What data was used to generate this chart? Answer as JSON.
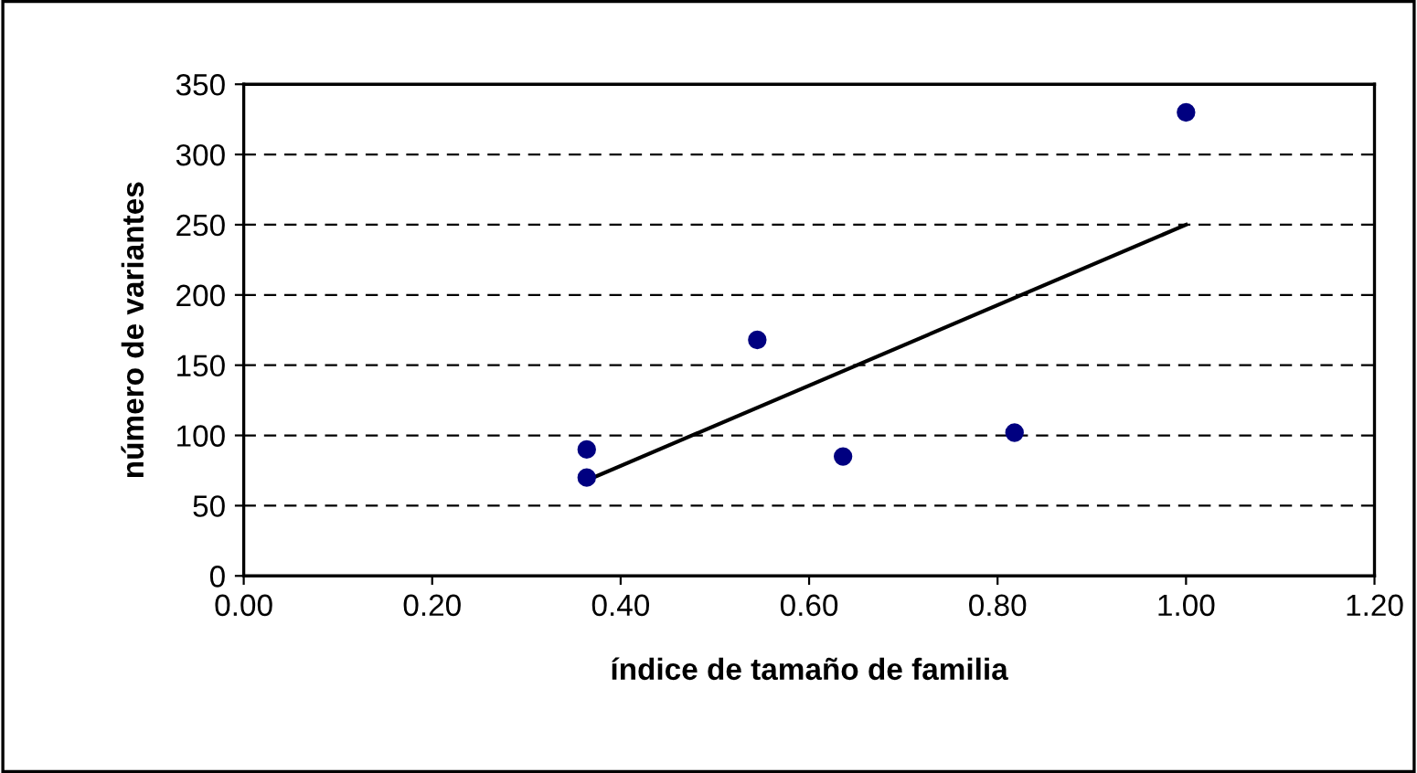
{
  "chart_data": {
    "type": "scatter",
    "xlabel": "índice de tamaño de familia",
    "ylabel": "número de variantes",
    "series": [
      {
        "color": "#000080",
        "x": [
          0.364,
          0.364,
          0.545,
          0.636,
          0.818,
          1.0
        ],
        "values": [
          90,
          70,
          168,
          85,
          102,
          330
        ],
        "marker": "circle"
      },
      {
        "type": "line",
        "color": "#000000",
        "x": [
          0.364,
          1.0
        ],
        "values": [
          68,
          250
        ],
        "line_style": "solid"
      }
    ],
    "xlim": [
      0,
      1.2
    ],
    "xticks": [
      {
        "value": 0,
        "label": "0.00"
      },
      {
        "value": 0.2,
        "label": "0.20"
      },
      {
        "value": 0.4,
        "label": "0.40"
      },
      {
        "value": 0.6,
        "label": "0.60"
      },
      {
        "value": 0.8,
        "label": "0.80"
      },
      {
        "value": 1.0,
        "label": "1.00"
      },
      {
        "value": 1.2,
        "label": "1.20"
      }
    ],
    "ylim": [
      0,
      350
    ],
    "yticks": [
      0,
      50,
      100,
      150,
      200,
      250,
      300,
      350
    ],
    "grid": "y",
    "legend": false
  }
}
